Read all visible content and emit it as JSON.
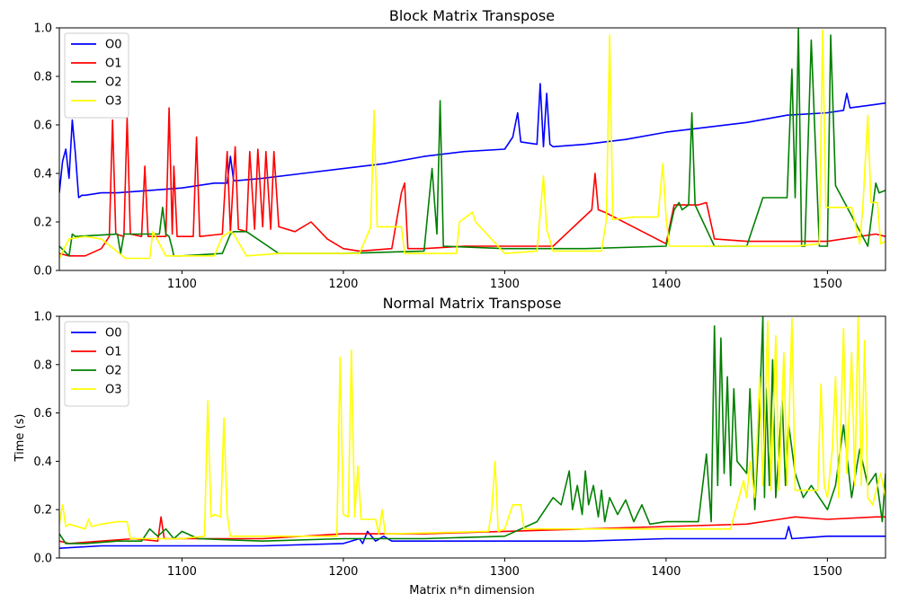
{
  "chart_data": [
    {
      "type": "line",
      "title": "Block Matrix Transpose",
      "xlabel": "",
      "ylabel": "",
      "xlim": [
        1024,
        1536
      ],
      "ylim": [
        0,
        1
      ],
      "xticks": [
        1100,
        1200,
        1300,
        1400,
        1500
      ],
      "yticks": [
        0.0,
        0.2,
        0.4,
        0.6,
        0.8,
        1.0
      ],
      "grid": false,
      "legend": "top-left",
      "series": [
        {
          "name": "O0",
          "color": "#0000ff",
          "x": [
            1024,
            1026,
            1028,
            1030,
            1032,
            1034,
            1036,
            1038,
            1040,
            1050,
            1060,
            1080,
            1100,
            1120,
            1128,
            1130,
            1132,
            1134,
            1150,
            1175,
            1200,
            1225,
            1250,
            1275,
            1300,
            1305,
            1308,
            1310,
            1320,
            1322,
            1324,
            1326,
            1328,
            1330,
            1350,
            1375,
            1400,
            1425,
            1450,
            1475,
            1500,
            1510,
            1512,
            1514,
            1525,
            1536
          ],
          "y": [
            0.32,
            0.45,
            0.5,
            0.38,
            0.62,
            0.48,
            0.3,
            0.31,
            0.31,
            0.32,
            0.32,
            0.33,
            0.34,
            0.36,
            0.36,
            0.47,
            0.37,
            0.37,
            0.38,
            0.4,
            0.42,
            0.44,
            0.47,
            0.49,
            0.5,
            0.55,
            0.65,
            0.53,
            0.52,
            0.77,
            0.51,
            0.73,
            0.52,
            0.51,
            0.52,
            0.54,
            0.57,
            0.59,
            0.61,
            0.64,
            0.65,
            0.66,
            0.73,
            0.67,
            0.68,
            0.69
          ]
        },
        {
          "name": "O1",
          "color": "#ff0000",
          "x": [
            1024,
            1030,
            1040,
            1050,
            1055,
            1057,
            1059,
            1064,
            1066,
            1068,
            1075,
            1077,
            1079,
            1090,
            1092,
            1094,
            1095,
            1097,
            1107,
            1109,
            1111,
            1125,
            1128,
            1130,
            1133,
            1135,
            1140,
            1142,
            1145,
            1147,
            1150,
            1152,
            1155,
            1157,
            1160,
            1170,
            1180,
            1190,
            1200,
            1210,
            1230,
            1236,
            1238,
            1240,
            1245,
            1250,
            1275,
            1300,
            1330,
            1354,
            1356,
            1358,
            1362,
            1400,
            1405,
            1410,
            1420,
            1425,
            1430,
            1450,
            1500,
            1530,
            1536
          ],
          "y": [
            0.07,
            0.06,
            0.06,
            0.09,
            0.14,
            0.62,
            0.15,
            0.14,
            0.63,
            0.15,
            0.14,
            0.43,
            0.14,
            0.14,
            0.67,
            0.15,
            0.43,
            0.14,
            0.14,
            0.55,
            0.14,
            0.15,
            0.49,
            0.16,
            0.51,
            0.17,
            0.16,
            0.49,
            0.17,
            0.5,
            0.18,
            0.49,
            0.17,
            0.49,
            0.18,
            0.16,
            0.2,
            0.13,
            0.09,
            0.08,
            0.09,
            0.32,
            0.36,
            0.09,
            0.09,
            0.09,
            0.1,
            0.1,
            0.1,
            0.25,
            0.4,
            0.25,
            0.24,
            0.11,
            0.27,
            0.27,
            0.27,
            0.28,
            0.13,
            0.12,
            0.12,
            0.15,
            0.14
          ]
        },
        {
          "name": "O2",
          "color": "#008000",
          "x": [
            1024,
            1030,
            1032,
            1034,
            1060,
            1062,
            1064,
            1086,
            1088,
            1090,
            1092,
            1094,
            1095,
            1100,
            1125,
            1130,
            1132,
            1140,
            1160,
            1200,
            1250,
            1255,
            1258,
            1260,
            1262,
            1300,
            1350,
            1400,
            1405,
            1408,
            1410,
            1414,
            1416,
            1418,
            1430,
            1450,
            1460,
            1475,
            1478,
            1480,
            1482,
            1484,
            1486,
            1490,
            1495,
            1500,
            1502,
            1505,
            1525,
            1530,
            1532,
            1536
          ],
          "y": [
            0.1,
            0.06,
            0.15,
            0.14,
            0.15,
            0.07,
            0.15,
            0.15,
            0.26,
            0.15,
            0.14,
            0.09,
            0.06,
            0.06,
            0.07,
            0.15,
            0.16,
            0.16,
            0.07,
            0.07,
            0.08,
            0.42,
            0.15,
            0.7,
            0.1,
            0.09,
            0.09,
            0.1,
            0.25,
            0.28,
            0.25,
            0.27,
            0.65,
            0.27,
            0.1,
            0.1,
            0.3,
            0.3,
            0.83,
            0.3,
            1.0,
            0.1,
            0.1,
            0.95,
            0.1,
            0.1,
            0.97,
            0.35,
            0.1,
            0.36,
            0.32,
            0.33
          ]
        },
        {
          "name": "O3",
          "color": "#ffff00",
          "x": [
            1024,
            1030,
            1040,
            1050,
            1065,
            1075,
            1080,
            1082,
            1090,
            1095,
            1100,
            1120,
            1125,
            1130,
            1132,
            1140,
            1160,
            1200,
            1210,
            1217,
            1219,
            1221,
            1236,
            1238,
            1250,
            1270,
            1272,
            1280,
            1282,
            1300,
            1320,
            1324,
            1326,
            1330,
            1360,
            1363,
            1365,
            1367,
            1380,
            1395,
            1398,
            1400,
            1402,
            1405,
            1410,
            1450,
            1480,
            1495,
            1497,
            1499,
            1501,
            1505,
            1515,
            1520,
            1522,
            1525,
            1527,
            1531,
            1533,
            1536
          ],
          "y": [
            0.05,
            0.13,
            0.14,
            0.13,
            0.05,
            0.05,
            0.05,
            0.16,
            0.06,
            0.06,
            0.06,
            0.06,
            0.14,
            0.16,
            0.15,
            0.06,
            0.07,
            0.07,
            0.07,
            0.18,
            0.66,
            0.18,
            0.18,
            0.07,
            0.07,
            0.07,
            0.2,
            0.24,
            0.2,
            0.07,
            0.08,
            0.39,
            0.17,
            0.08,
            0.08,
            0.21,
            0.97,
            0.21,
            0.22,
            0.22,
            0.44,
            0.22,
            0.1,
            0.1,
            0.1,
            0.1,
            0.1,
            0.11,
            0.99,
            0.26,
            0.26,
            0.26,
            0.26,
            0.11,
            0.27,
            0.64,
            0.28,
            0.28,
            0.11,
            0.12
          ]
        }
      ]
    },
    {
      "type": "line",
      "title": "Normal Matrix Transpose",
      "xlabel": "Matrix n*n dimension",
      "ylabel": "Time (s)",
      "xlim": [
        1024,
        1536
      ],
      "ylim": [
        0,
        1
      ],
      "xticks": [
        1100,
        1200,
        1300,
        1400,
        1500
      ],
      "yticks": [
        0.0,
        0.2,
        0.4,
        0.6,
        0.8,
        1.0
      ],
      "grid": false,
      "legend": "top-left",
      "series": [
        {
          "name": "O0",
          "color": "#0000ff",
          "x": [
            1024,
            1050,
            1100,
            1150,
            1200,
            1210,
            1212,
            1215,
            1220,
            1225,
            1230,
            1250,
            1300,
            1350,
            1400,
            1450,
            1474,
            1476,
            1478,
            1500,
            1530,
            1536
          ],
          "y": [
            0.04,
            0.05,
            0.05,
            0.05,
            0.06,
            0.08,
            0.06,
            0.11,
            0.07,
            0.09,
            0.07,
            0.07,
            0.07,
            0.07,
            0.08,
            0.08,
            0.08,
            0.13,
            0.08,
            0.09,
            0.09,
            0.09
          ]
        },
        {
          "name": "O1",
          "color": "#ff0000",
          "x": [
            1024,
            1030,
            1050,
            1070,
            1085,
            1087,
            1089,
            1100,
            1150,
            1200,
            1250,
            1300,
            1350,
            1400,
            1450,
            1470,
            1480,
            1500,
            1530,
            1536
          ],
          "y": [
            0.07,
            0.06,
            0.07,
            0.08,
            0.07,
            0.17,
            0.08,
            0.08,
            0.08,
            0.1,
            0.1,
            0.11,
            0.12,
            0.13,
            0.14,
            0.16,
            0.17,
            0.16,
            0.17,
            0.17
          ]
        },
        {
          "name": "O2",
          "color": "#008000",
          "x": [
            1024,
            1026,
            1028,
            1040,
            1060,
            1075,
            1080,
            1085,
            1090,
            1095,
            1100,
            1110,
            1150,
            1200,
            1250,
            1300,
            1320,
            1330,
            1335,
            1340,
            1342,
            1345,
            1348,
            1350,
            1352,
            1355,
            1358,
            1360,
            1362,
            1365,
            1370,
            1375,
            1380,
            1385,
            1390,
            1400,
            1420,
            1425,
            1428,
            1430,
            1432,
            1434,
            1436,
            1438,
            1440,
            1442,
            1444,
            1450,
            1452,
            1455,
            1457,
            1460,
            1461,
            1462,
            1464,
            1466,
            1468,
            1470,
            1472,
            1474,
            1476,
            1480,
            1485,
            1490,
            1495,
            1500,
            1505,
            1510,
            1515,
            1520,
            1525,
            1530,
            1534,
            1536
          ],
          "y": [
            0.1,
            0.08,
            0.06,
            0.06,
            0.07,
            0.07,
            0.12,
            0.09,
            0.12,
            0.08,
            0.11,
            0.08,
            0.07,
            0.08,
            0.08,
            0.09,
            0.15,
            0.25,
            0.22,
            0.36,
            0.2,
            0.3,
            0.18,
            0.36,
            0.22,
            0.3,
            0.17,
            0.28,
            0.15,
            0.25,
            0.18,
            0.24,
            0.15,
            0.22,
            0.14,
            0.15,
            0.15,
            0.43,
            0.15,
            0.96,
            0.3,
            0.91,
            0.35,
            0.75,
            0.3,
            0.7,
            0.4,
            0.35,
            0.7,
            0.2,
            0.45,
            1.0,
            0.25,
            0.7,
            0.3,
            0.82,
            0.25,
            0.45,
            0.65,
            0.3,
            0.55,
            0.35,
            0.25,
            0.3,
            0.25,
            0.2,
            0.3,
            0.55,
            0.25,
            0.45,
            0.3,
            0.35,
            0.15,
            0.35
          ]
        },
        {
          "name": "O3",
          "color": "#ffff00",
          "x": [
            1024,
            1026,
            1028,
            1030,
            1040,
            1042,
            1044,
            1050,
            1060,
            1066,
            1068,
            1100,
            1114,
            1116,
            1118,
            1120,
            1124,
            1126,
            1128,
            1130,
            1180,
            1196,
            1198,
            1200,
            1203,
            1205,
            1207,
            1209,
            1211,
            1220,
            1222,
            1224,
            1226,
            1230,
            1290,
            1292,
            1294,
            1296,
            1300,
            1305,
            1310,
            1312,
            1315,
            1320,
            1400,
            1440,
            1448,
            1450,
            1452,
            1455,
            1458,
            1460,
            1463,
            1465,
            1468,
            1470,
            1473,
            1475,
            1478,
            1480,
            1482,
            1485,
            1490,
            1494,
            1496,
            1498,
            1500,
            1503,
            1505,
            1507,
            1510,
            1512,
            1515,
            1517,
            1519,
            1521,
            1523,
            1525,
            1528,
            1531,
            1533,
            1536
          ],
          "y": [
            0.14,
            0.22,
            0.13,
            0.14,
            0.12,
            0.16,
            0.13,
            0.14,
            0.15,
            0.15,
            0.08,
            0.08,
            0.09,
            0.65,
            0.17,
            0.18,
            0.17,
            0.58,
            0.18,
            0.09,
            0.09,
            0.09,
            0.83,
            0.18,
            0.17,
            0.86,
            0.17,
            0.38,
            0.16,
            0.16,
            0.1,
            0.2,
            0.1,
            0.1,
            0.11,
            0.2,
            0.4,
            0.11,
            0.12,
            0.22,
            0.22,
            0.12,
            0.12,
            0.12,
            0.12,
            0.12,
            0.32,
            0.25,
            0.4,
            0.25,
            0.75,
            0.3,
            0.98,
            0.28,
            0.92,
            0.28,
            0.85,
            0.3,
            0.99,
            0.28,
            0.28,
            0.28,
            0.28,
            0.28,
            0.72,
            0.3,
            0.25,
            0.45,
            0.75,
            0.25,
            0.95,
            0.35,
            0.85,
            0.3,
            1.0,
            0.3,
            0.9,
            0.25,
            0.22,
            0.3,
            0.35,
            0.25
          ]
        }
      ]
    }
  ]
}
